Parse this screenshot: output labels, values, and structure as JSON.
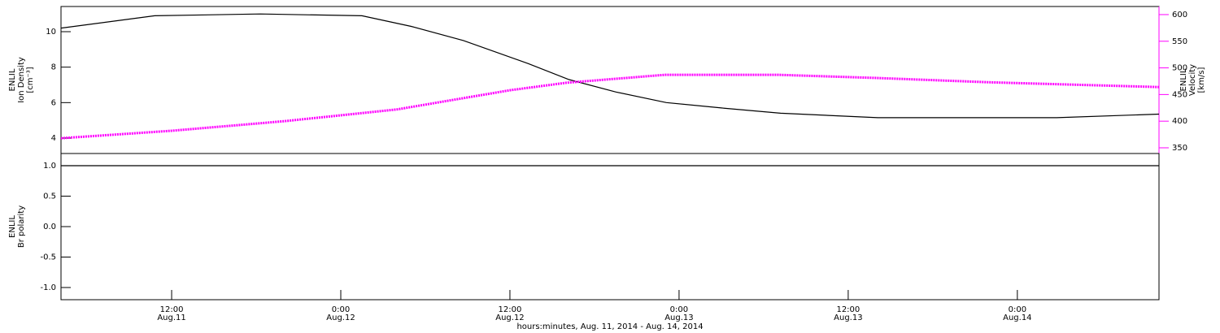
{
  "chart_data": [
    {
      "type": "line",
      "ylabel": [
        "ENLIL",
        "Ion Density",
        "[cm⁻³]"
      ],
      "y2label": [
        "ENLIL",
        "Velocity",
        "[km/s]"
      ],
      "xlim": [
        4.15,
        82.05
      ],
      "ylim": [
        3.13,
        11.42
      ],
      "yticks": [
        4,
        6,
        8,
        10
      ],
      "y2lim": [
        339.3,
        615.2
      ],
      "y2ticks": [
        350,
        400,
        450,
        500,
        550,
        600
      ],
      "y2color": "#ff00ff",
      "series": [
        {
          "name": "Ion Density",
          "color": "#000000",
          "axis": "y",
          "x": [
            4.15,
            10.8,
            18.3,
            25.5,
            29,
            32.7,
            37.3,
            40.2,
            43.5,
            47.1,
            51,
            55.2,
            62.1,
            68,
            74.8,
            82.05
          ],
          "values": [
            10.2,
            10.9,
            11.0,
            10.9,
            10.3,
            9.5,
            8.2,
            7.3,
            6.6,
            6.0,
            5.7,
            5.4,
            5.15,
            5.15,
            5.15,
            5.35
          ]
        },
        {
          "name": "Velocity",
          "color": "#ff00ff",
          "axis": "y2",
          "x": [
            4.15,
            12,
            20,
            28,
            32,
            36,
            40,
            47,
            55,
            62,
            70,
            82.05
          ],
          "values": [
            368,
            382,
            400,
            422,
            440,
            458,
            472,
            487,
            487,
            481,
            473,
            464
          ]
        }
      ]
    },
    {
      "type": "line",
      "ylabel": [
        "ENLIL",
        "Br polarity"
      ],
      "xlabel": "hours:minutes, Aug. 11, 2014 - Aug. 14, 2014",
      "xlim": [
        4.15,
        82.05
      ],
      "ylim": [
        -1.2,
        1.2
      ],
      "yticks": [
        {
          "value": 1,
          "label": "1.0"
        },
        0.5,
        {
          "value": 0,
          "label": "0.0"
        },
        -0.5,
        {
          "value": -1,
          "label": "-1.0"
        }
      ],
      "xticks": [
        {
          "value": 12,
          "label": "12:00",
          "date": "Aug.11"
        },
        {
          "value": 24,
          "label": "0:00",
          "date": "Aug.12"
        },
        {
          "value": 36,
          "label": "12:00",
          "date": "Aug.12"
        },
        {
          "value": 48,
          "label": "0:00",
          "date": "Aug.13"
        },
        {
          "value": 60,
          "label": "12:00",
          "date": "Aug.13"
        },
        {
          "value": 72,
          "label": "0:00",
          "date": "Aug.14"
        }
      ],
      "series": [
        {
          "name": "Br polarity",
          "color": "#000000",
          "axis": "y",
          "x": [
            4.15,
            8,
            12,
            16,
            20,
            24,
            28,
            32,
            36,
            40,
            44,
            48,
            52,
            56,
            60,
            64,
            68,
            72,
            76,
            80,
            82.05
          ],
          "values": [
            1,
            1,
            1,
            1,
            1,
            1,
            1,
            1,
            1,
            1,
            1,
            1,
            1,
            1,
            1,
            1,
            1,
            1,
            1,
            1,
            1
          ]
        }
      ]
    }
  ]
}
